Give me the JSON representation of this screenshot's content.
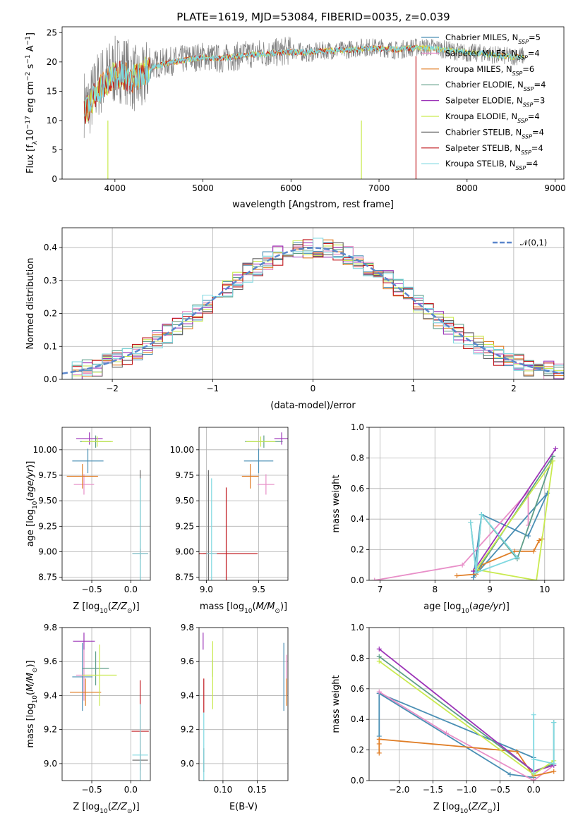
{
  "title": "PLATE=1619, MJD=53084, FIBERID=0035, z=0.039",
  "series": [
    {
      "name": "Chabrier MILES, N_{SSP}=5",
      "color": "#4a8fb4"
    },
    {
      "name": "Salpeter MILES, N_{SSP}=4",
      "color": "#e88fc8"
    },
    {
      "name": "Kroupa MILES, N_{SSP}=6",
      "color": "#e07e27"
    },
    {
      "name": "Chabrier ELODIE, N_{SSP}=4",
      "color": "#5f9e89"
    },
    {
      "name": "Salpeter ELODIE, N_{SSP}=3",
      "color": "#9c34b8"
    },
    {
      "name": "Kroupa ELODIE, N_{SSP}=4",
      "color": "#c9ea4f"
    },
    {
      "name": "Chabrier STELIB, N_{SSP}=4",
      "color": "#666666"
    },
    {
      "name": "Salpeter STELIB, N_{SSP}=4",
      "color": "#c0181e"
    },
    {
      "name": "Kroupa STELIB, N_{SSP}=4",
      "color": "#7fd8e0"
    }
  ],
  "chart_data": [
    {
      "id": "spectrum",
      "type": "line",
      "xlabel": "wavelength [Angstrom, rest frame]",
      "ylabel": "Flux [f_λ10^{-17} erg cm^{-2} s^{-1} A^{-1}]",
      "xlim": [
        3400,
        9100
      ],
      "ylim": [
        0,
        26
      ],
      "xticks": [
        4000,
        5000,
        6000,
        7000,
        8000,
        9000
      ],
      "yticks": [
        0,
        5,
        10,
        15,
        20,
        25
      ],
      "grid": false,
      "legend": "right",
      "data_trace": {
        "x": [
          3650,
          3700,
          3800,
          3900,
          4000,
          4100,
          4200,
          4300,
          4400,
          4600,
          4800,
          5000,
          5200,
          5400,
          5600,
          5800,
          6000,
          6200,
          6400,
          6600,
          6800,
          7000,
          7200,
          7400,
          7600,
          7800,
          8000,
          8200,
          8400,
          8600
        ],
        "y": [
          13,
          12.5,
          16,
          17.5,
          18.5,
          19,
          17.5,
          16,
          19.5,
          20,
          20.5,
          21,
          20.5,
          21,
          21.5,
          21.5,
          22,
          21.5,
          22,
          22,
          22.5,
          22.5,
          22,
          22.5,
          22.5,
          22,
          21.5,
          21.5,
          21,
          21
        ]
      },
      "model_cutoffs": [
        {
          "series": "Kroupa ELODIE",
          "x": 3920
        },
        {
          "series": "Kroupa ELODIE",
          "x": 6800
        },
        {
          "series": "Salpeter STELIB",
          "x": 7420
        }
      ],
      "model_smoothed": {
        "x": [
          3650,
          3800,
          4000,
          4200,
          4400,
          4600,
          4800,
          5000,
          5200,
          5400,
          5600,
          5800,
          6000,
          6200,
          6400,
          6600,
          6800,
          7000,
          7200,
          7400,
          7600,
          7800,
          8000,
          8200,
          8400,
          8600
        ],
        "y": [
          11,
          15,
          18,
          17,
          19,
          19.8,
          20.3,
          20.8,
          20.6,
          21,
          21.3,
          21.5,
          21.7,
          21.6,
          21.9,
          22,
          22.2,
          22.3,
          22.1,
          22.4,
          22.3,
          22,
          21.6,
          21.4,
          21,
          20.8
        ]
      }
    },
    {
      "id": "residuals",
      "type": "histogram",
      "xlabel": "(data-model)/error",
      "ylabel": "Normed distribution",
      "xlim": [
        -2.5,
        2.5
      ],
      "ylim": [
        0,
        0.46
      ],
      "xticks": [
        -2,
        -1,
        0,
        1,
        2
      ],
      "yticks": [
        0,
        0.1,
        0.2,
        0.3,
        0.4
      ],
      "grid": true,
      "legend": "top-right",
      "gaussian_label": "𝒩(0,1)",
      "gaussian_color": "#5a86cc",
      "bin_edges_start": -2.5,
      "bin_width": 0.1
    },
    {
      "id": "age_vs_Z",
      "type": "errorbar",
      "xlabel": "Z [log10(Z/Z⊙)]",
      "ylabel": "age  [log10(age/yr)]",
      "xlim": [
        -0.88,
        0.25
      ],
      "ylim": [
        8.72,
        10.22
      ],
      "xticks": [
        -0.5,
        0.0
      ],
      "yticks": [
        8.75,
        9.0,
        9.25,
        9.5,
        9.75,
        10.0
      ],
      "points": [
        {
          "s": 0,
          "x": -0.55,
          "y": 9.89,
          "xe": 0.2,
          "ye": 0.12
        },
        {
          "s": 1,
          "x": -0.6,
          "y": 9.66,
          "xe": 0.13,
          "ye": 0.1
        },
        {
          "s": 2,
          "x": -0.62,
          "y": 9.74,
          "xe": 0.2,
          "ye": 0.12
        },
        {
          "s": 3,
          "x": -0.45,
          "y": 10.08,
          "xe": 0.2,
          "ye": 0.06
        },
        {
          "s": 4,
          "x": -0.53,
          "y": 10.11,
          "xe": 0.17,
          "ye": 0.06
        },
        {
          "s": 5,
          "x": -0.43,
          "y": 10.08,
          "xe": 0.2,
          "ye": 0.05
        },
        {
          "s": 6,
          "x": 0.12,
          "y": 8.98,
          "xe": 0.1,
          "ye": 0.82
        },
        {
          "s": 7,
          "x": 0.12,
          "y": 8.98,
          "xe": 0.1,
          "ye": 0.05
        },
        {
          "s": 8,
          "x": 0.12,
          "y": 8.98,
          "xe": 0.1,
          "ye": 0.74
        }
      ]
    },
    {
      "id": "age_vs_mass",
      "type": "errorbar",
      "xlabel": "mass [log10(M/M⊙)]",
      "ylabel": "",
      "xlim": [
        8.93,
        9.78
      ],
      "ylim": [
        8.72,
        10.22
      ],
      "xticks": [
        9.0,
        9.5
      ],
      "yticks": [
        8.75,
        9.0,
        9.25,
        9.5,
        9.75,
        10.0
      ],
      "points": [
        {
          "s": 0,
          "x": 9.5,
          "y": 9.89,
          "xe": 0.14,
          "ye": 0.12
        },
        {
          "s": 1,
          "x": 9.57,
          "y": 9.66,
          "xe": 0.08,
          "ye": 0.1
        },
        {
          "s": 2,
          "x": 9.42,
          "y": 9.74,
          "xe": 0.08,
          "ye": 0.12
        },
        {
          "s": 3,
          "x": 9.55,
          "y": 10.08,
          "xe": 0.18,
          "ye": 0.06
        },
        {
          "s": 4,
          "x": 9.72,
          "y": 10.11,
          "xe": 0.07,
          "ye": 0.06
        },
        {
          "s": 5,
          "x": 9.52,
          "y": 10.08,
          "xe": 0.14,
          "ye": 0.05
        },
        {
          "s": 6,
          "x": 9.02,
          "y": 8.98,
          "xe": 0.05,
          "ye": 0.82
        },
        {
          "s": 7,
          "x": 9.19,
          "y": 8.98,
          "xe": 0.3,
          "ye": 0.65
        },
        {
          "s": 8,
          "x": 9.05,
          "y": 8.98,
          "xe": 0.05,
          "ye": 0.74
        }
      ]
    },
    {
      "id": "weight_vs_age",
      "type": "line",
      "xlabel": "age  [log10(age/yr)]",
      "ylabel": "mass weight",
      "xlim": [
        6.8,
        10.35
      ],
      "ylim": [
        0,
        1.0
      ],
      "xticks": [
        7,
        8,
        9,
        10
      ],
      "yticks": [
        0.0,
        0.2,
        0.4,
        0.6,
        0.8,
        1.0
      ],
      "grid": true,
      "lines": [
        {
          "s": 0,
          "x": [
            8.7,
            8.85,
            9.7,
            10.05,
            8.7
          ],
          "y": [
            0.02,
            0.43,
            0.29,
            0.57,
            0.02
          ]
        },
        {
          "s": 1,
          "x": [
            6.9,
            8.5,
            9.7,
            9.7
          ],
          "y": [
            0.0,
            0.1,
            0.58,
            0.36
          ]
        },
        {
          "s": 2,
          "x": [
            8.4,
            8.75,
            8.85,
            9.45,
            9.8,
            9.9,
            9.95
          ],
          "y": [
            0.03,
            0.04,
            0.1,
            0.19,
            0.19,
            0.26,
            0.27
          ]
        },
        {
          "s": 3,
          "x": [
            8.65,
            8.75,
            8.85,
            9.5,
            10.15,
            8.75
          ],
          "y": [
            0.38,
            0.05,
            0.43,
            0.14,
            0.81,
            0.05
          ]
        },
        {
          "s": 4,
          "x": [
            8.7,
            10.2,
            8.7
          ],
          "y": [
            0.06,
            0.86,
            0.06
          ]
        },
        {
          "s": 5,
          "x": [
            8.75,
            9.85,
            10.15,
            8.75
          ],
          "y": [
            0.07,
            0.0,
            0.78,
            0.07
          ]
        },
        {
          "s": 8,
          "x": [
            8.65,
            8.75,
            8.85,
            9.5,
            8.75
          ],
          "y": [
            0.38,
            0.05,
            0.43,
            0.15,
            0.05
          ]
        }
      ]
    },
    {
      "id": "mass_vs_Z",
      "type": "errorbar",
      "xlabel": "Z [log10(Z/Z⊙)]",
      "ylabel": "mass [log10(M/M⊙)]",
      "xlim": [
        -0.88,
        0.25
      ],
      "ylim": [
        8.9,
        9.8
      ],
      "xticks": [
        -0.5,
        0.0
      ],
      "yticks": [
        9.0,
        9.2,
        9.4,
        9.6,
        9.8
      ],
      "points": [
        {
          "s": 0,
          "x": -0.62,
          "y": 9.51,
          "xe": 0.13,
          "ye": 0.2
        },
        {
          "s": 1,
          "x": -0.6,
          "y": 9.52,
          "xe": 0.1,
          "ye": 0.15
        },
        {
          "s": 2,
          "x": -0.58,
          "y": 9.42,
          "xe": 0.2,
          "ye": 0.08
        },
        {
          "s": 3,
          "x": -0.45,
          "y": 9.56,
          "xe": 0.17,
          "ye": 0.1
        },
        {
          "s": 4,
          "x": -0.6,
          "y": 9.72,
          "xe": 0.14,
          "ye": 0.05
        },
        {
          "s": 5,
          "x": -0.4,
          "y": 9.52,
          "xe": 0.22,
          "ye": 0.18
        },
        {
          "s": 6,
          "x": 0.12,
          "y": 9.02,
          "xe": 0.1,
          "ye": 0.06
        },
        {
          "s": 7,
          "x": 0.12,
          "y": 9.19,
          "xe": 0.11,
          "ye": 0.3
        },
        {
          "s": 8,
          "x": 0.12,
          "y": 9.05,
          "xe": 0.1,
          "ye": 0.3
        }
      ]
    },
    {
      "id": "mass_vs_EBV",
      "type": "errorbar",
      "xlabel": "E(B-V)",
      "ylabel": "",
      "xlim": [
        0.065,
        0.195
      ],
      "ylim": [
        8.9,
        9.8
      ],
      "xticks": [
        0.1,
        0.15
      ],
      "yticks": [
        9.0,
        9.2,
        9.4,
        9.6,
        9.8
      ],
      "points": [
        {
          "s": 0,
          "x": 0.189,
          "y": 9.51,
          "xe": 0,
          "ye": 0.2
        },
        {
          "s": 1,
          "x": 0.193,
          "y": 9.52,
          "xe": 0,
          "ye": 0.12
        },
        {
          "s": 2,
          "x": 0.193,
          "y": 9.42,
          "xe": 0,
          "ye": 0.08
        },
        {
          "s": 3,
          "x": 0.085,
          "y": 9.56,
          "xe": 0,
          "ye": 0.05
        },
        {
          "s": 4,
          "x": 0.071,
          "y": 9.72,
          "xe": 0,
          "ye": 0.05
        },
        {
          "s": 5,
          "x": 0.085,
          "y": 9.52,
          "xe": 0,
          "ye": 0.2
        },
        {
          "s": 6,
          "x": 0.072,
          "y": 9.02,
          "xe": 0,
          "ye": 0.07
        },
        {
          "s": 7,
          "x": 0.072,
          "y": 9.4,
          "xe": 0,
          "ye": 0.1
        },
        {
          "s": 8,
          "x": 0.072,
          "y": 9.1,
          "xe": 0,
          "ye": 0.2
        }
      ]
    },
    {
      "id": "weight_vs_Z",
      "type": "line",
      "xlabel": "Z [log10(Z/Z⊙)]",
      "ylabel": "mass weight",
      "xlim": [
        -2.45,
        0.45
      ],
      "ylim": [
        0,
        1.0
      ],
      "xticks": [
        -2.0,
        -1.5,
        -1.0,
        -0.5,
        0.0
      ],
      "yticks": [
        0.0,
        0.2,
        0.4,
        0.6,
        0.8,
        1.0
      ],
      "grid": true,
      "lines": [
        {
          "s": 0,
          "x": [
            -2.3,
            -2.3,
            -0.35,
            0.0,
            0.0,
            -2.3
          ],
          "y": [
            0.29,
            0.57,
            0.04,
            0.02,
            0.15,
            0.57
          ]
        },
        {
          "s": 1,
          "x": [
            -2.3,
            -1.3,
            0.0,
            0.3
          ],
          "y": [
            0.58,
            0.31,
            0.0,
            0.1
          ]
        },
        {
          "s": 2,
          "x": [
            -2.3,
            -2.3,
            -2.3,
            -0.25,
            0.0,
            0.3
          ],
          "y": [
            0.18,
            0.24,
            0.27,
            0.19,
            0.03,
            0.06
          ]
        },
        {
          "s": 3,
          "x": [
            -2.3,
            0.0,
            0.3,
            0.3
          ],
          "y": [
            0.81,
            0.06,
            0.11,
            0.38
          ]
        },
        {
          "s": 4,
          "x": [
            -2.3,
            0.0,
            0.3
          ],
          "y": [
            0.86,
            0.06,
            0.1
          ]
        },
        {
          "s": 5,
          "x": [
            -2.3,
            0.0,
            0.3
          ],
          "y": [
            0.78,
            0.04,
            0.13
          ]
        },
        {
          "s": 8,
          "x": [
            0.0,
            0.0,
            0.0,
            0.3,
            0.3
          ],
          "y": [
            0.43,
            0.05,
            0.14,
            0.11,
            0.38
          ]
        }
      ]
    }
  ]
}
